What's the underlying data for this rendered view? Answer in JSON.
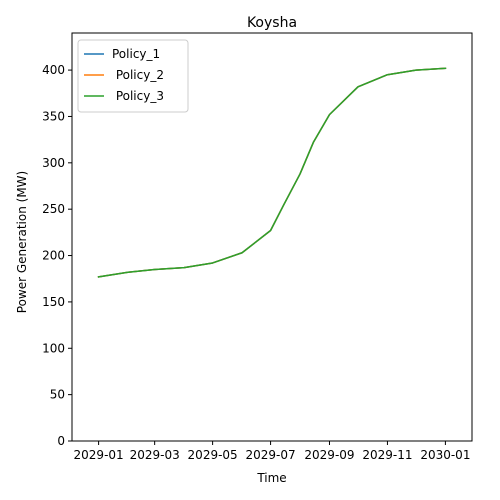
{
  "chart_data": {
    "type": "line",
    "title": "Koysha",
    "xlabel": "Time",
    "ylabel": "Power Generation (MW)",
    "x": [
      "2029-01-01",
      "2029-02-01",
      "2029-03-01",
      "2029-04-01",
      "2029-05-01",
      "2029-06-01",
      "2029-07-01",
      "2029-07-15",
      "2029-08-01",
      "2029-08-15",
      "2029-09-01",
      "2029-10-01",
      "2029-11-01",
      "2029-12-01",
      "2030-01-01"
    ],
    "series": [
      {
        "name": "Policy_1",
        "color": "#1f77b4",
        "values": [
          177,
          182,
          185,
          187,
          192,
          203,
          227,
          255,
          288,
          322,
          352,
          382,
          395,
          400,
          402
        ]
      },
      {
        "name": " Policy_2",
        "color": "#ff7f0e",
        "values": [
          177,
          182,
          185,
          187,
          192,
          203,
          227,
          255,
          288,
          322,
          352,
          382,
          395,
          400,
          402
        ]
      },
      {
        "name": " Policy_3",
        "color": "#2ca02c",
        "values": [
          177,
          182,
          185,
          187,
          192,
          203,
          227,
          255,
          288,
          322,
          352,
          382,
          395,
          400,
          402
        ]
      }
    ],
    "ylim": [
      0,
      440
    ],
    "xlim": [
      "2028-12-04",
      "2030-01-29"
    ],
    "yticks": [
      0,
      50,
      100,
      150,
      200,
      250,
      300,
      350,
      400
    ],
    "xticks": [
      "2029-01-01",
      "2029-03-01",
      "2029-05-01",
      "2029-07-01",
      "2029-09-01",
      "2029-11-01",
      "2030-01-01"
    ],
    "xtick_labels": [
      "2029-01",
      "2029-03",
      "2029-05",
      "2029-07",
      "2029-09",
      "2029-11",
      "2030-01"
    ],
    "grid": false,
    "legend": "top-left"
  }
}
